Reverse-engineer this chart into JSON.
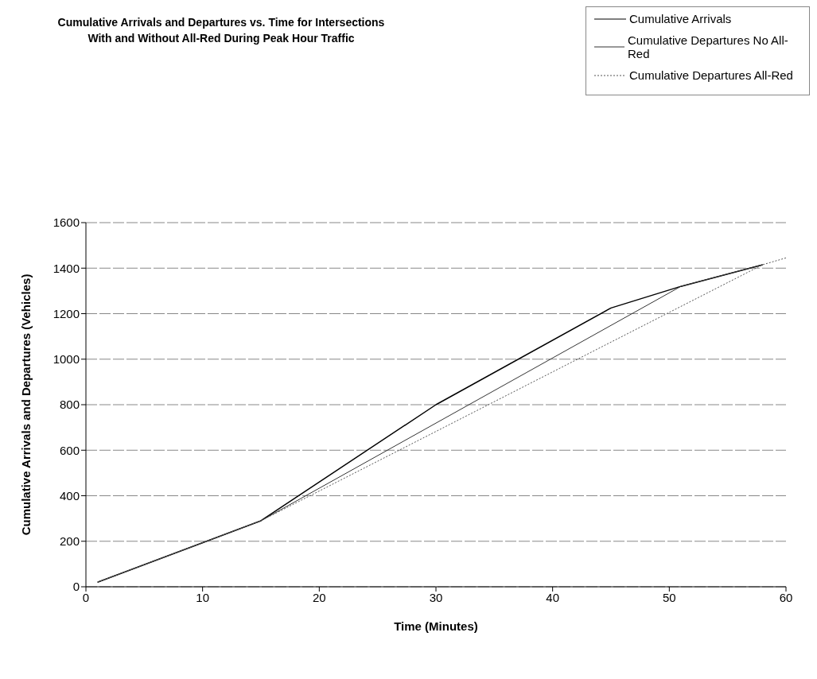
{
  "chart_data": {
    "type": "line",
    "title": "Cumulative Arrivals and Departures vs. Time for Intersections With and Without All-Red During Peak Hour Traffic",
    "xlabel": "Time (Minutes)",
    "ylabel": "Cumulative Arrivals and Departures (Vehicles)",
    "series": [
      {
        "name": "Cumulative Arrivals",
        "color": "#000000",
        "line_style": "solid",
        "x": [
          1,
          15,
          30,
          45,
          51,
          58
        ],
        "values": [
          20,
          290,
          800,
          1225,
          1320,
          1415
        ]
      },
      {
        "name": "Cumulative Departures No All-Red",
        "color": "#333333",
        "line_style": "solid",
        "x": [
          1,
          15,
          51,
          58
        ],
        "values": [
          20,
          290,
          1320,
          1415
        ]
      },
      {
        "name": "Cumulative Departures All-Red",
        "color": "#555555",
        "line_style": "dotted",
        "x": [
          1,
          15,
          58,
          60
        ],
        "values": [
          20,
          290,
          1415,
          1445
        ]
      }
    ],
    "xlim": [
      0,
      60
    ],
    "xticks": [
      0,
      10,
      20,
      30,
      40,
      50,
      60
    ],
    "ylim": [
      0,
      1600
    ],
    "yticks": [
      0,
      200,
      400,
      600,
      800,
      1000,
      1200,
      1400,
      1600
    ],
    "grid": "y",
    "legend": "top right",
    "marker": "none"
  }
}
